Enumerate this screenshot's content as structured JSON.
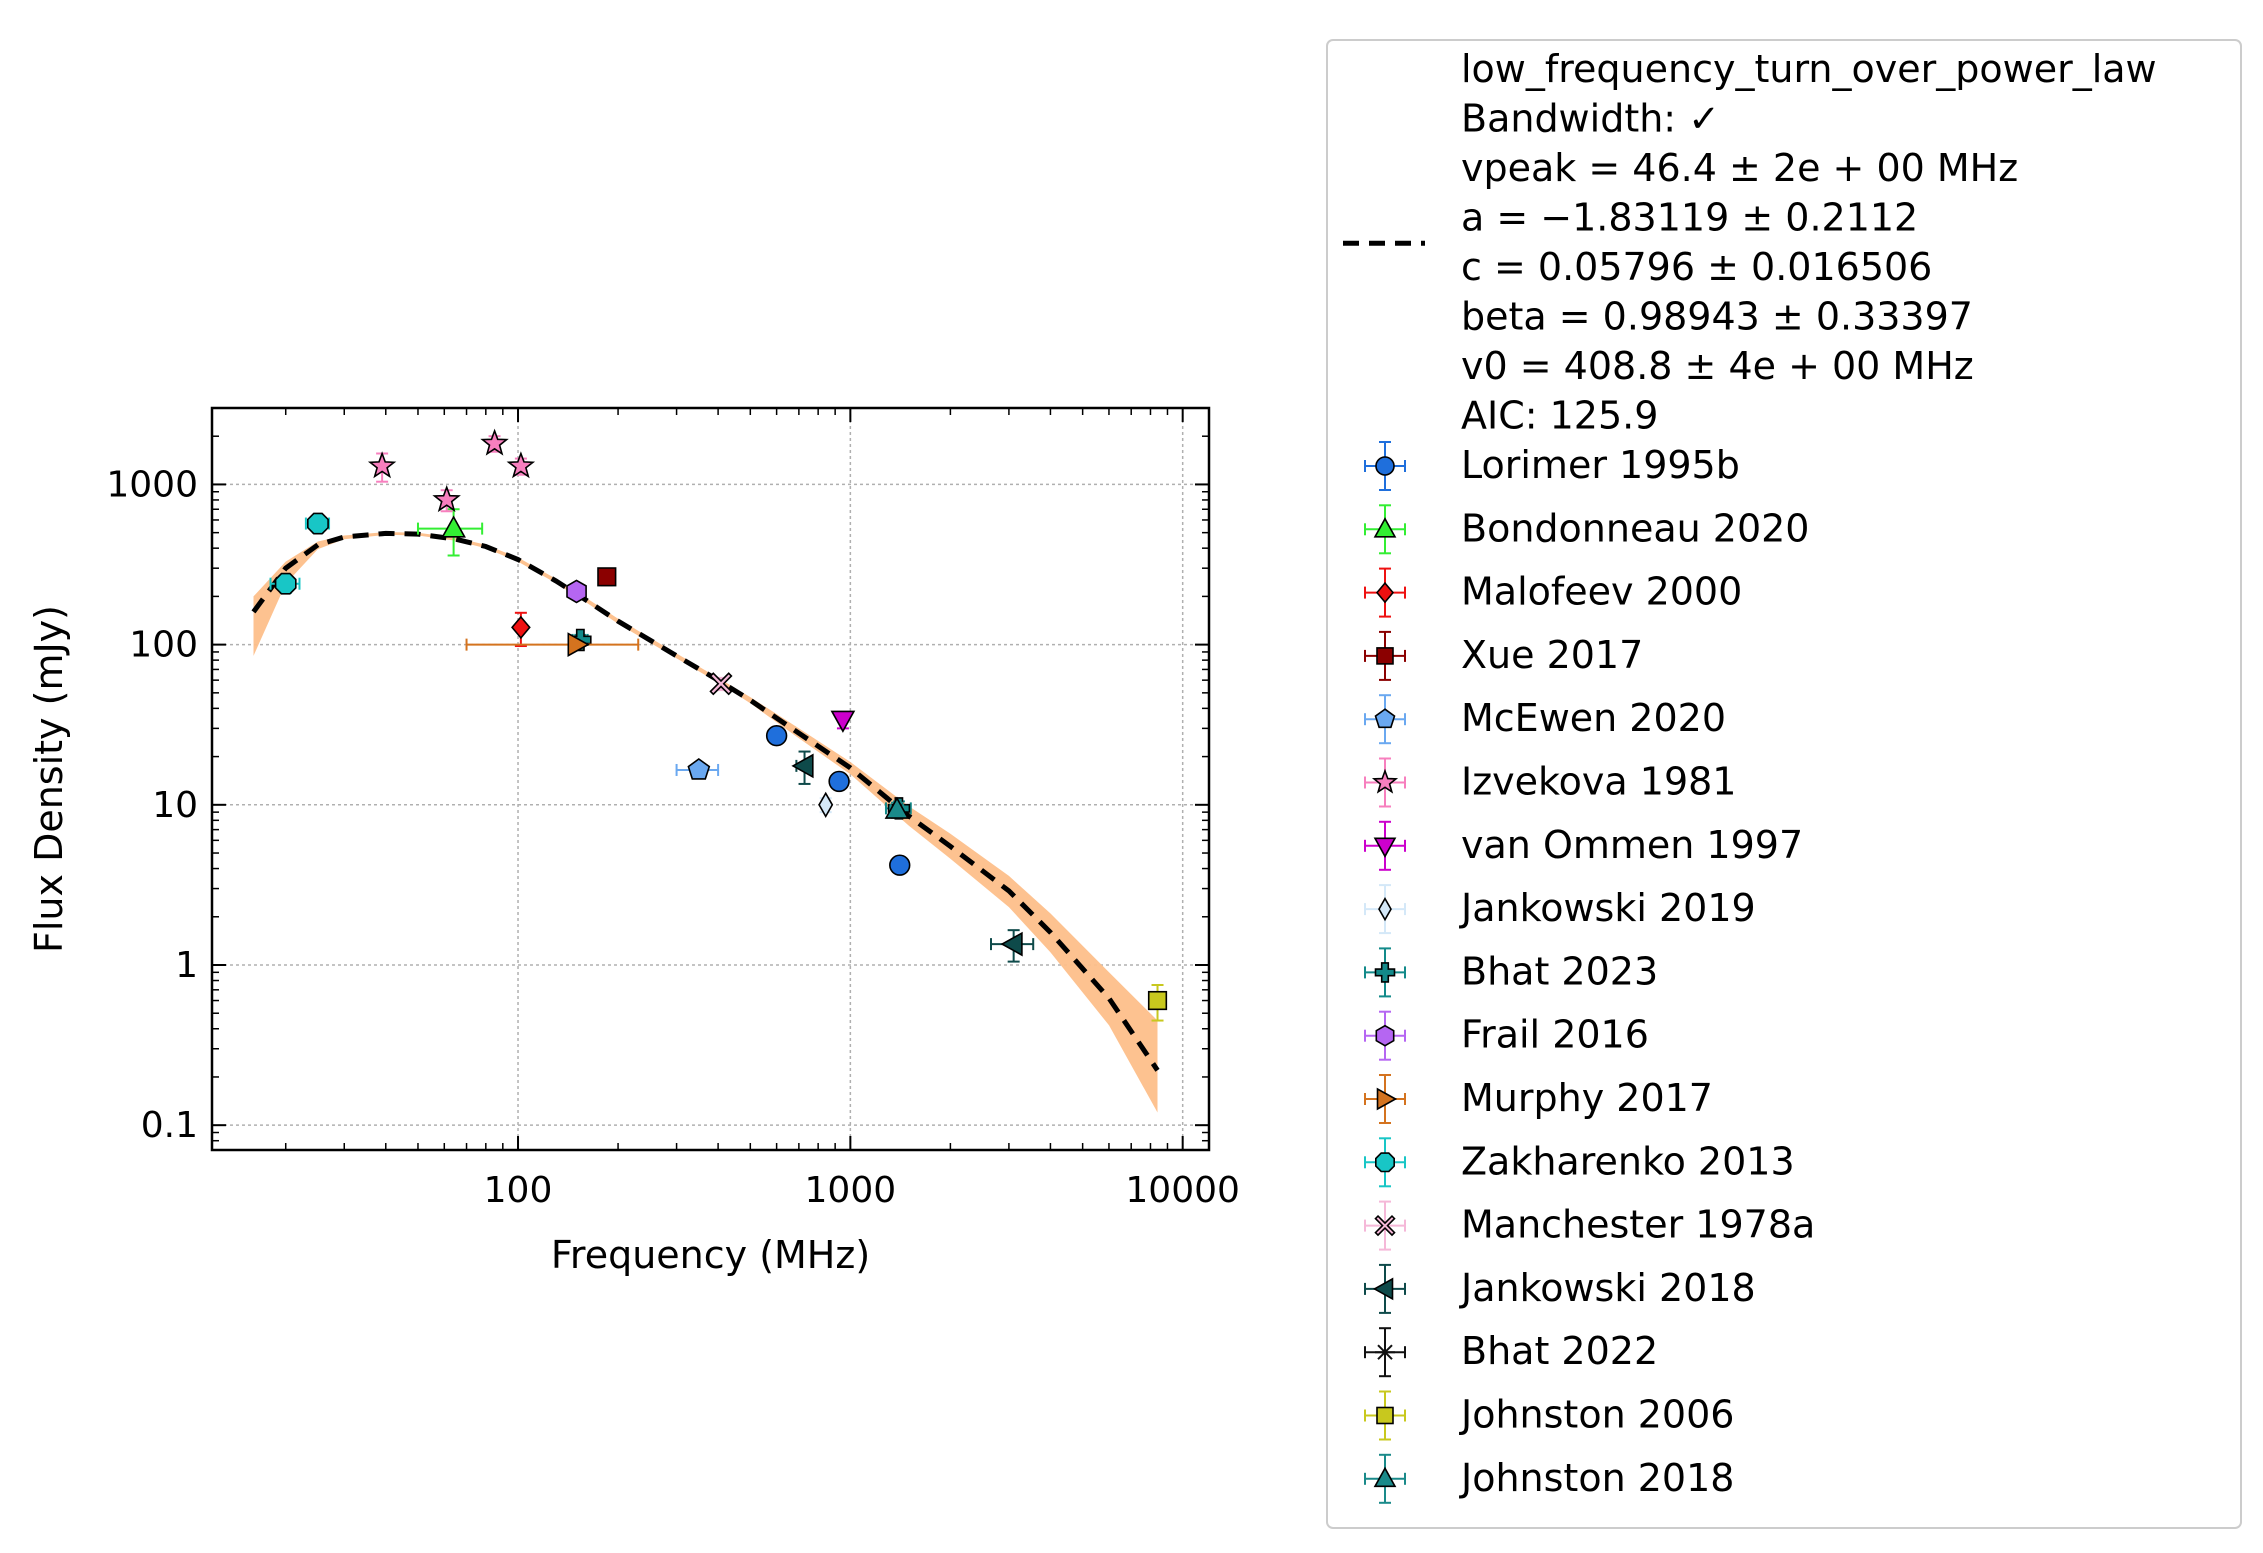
{
  "chart_data": {
    "type": "scatter",
    "title": "",
    "xlabel": "Frequency (MHz)",
    "ylabel": "Flux Density (mJy)",
    "xscale": "log",
    "yscale": "log",
    "xlim": [
      12,
      12000
    ],
    "ylim": [
      0.07,
      3000
    ],
    "grid": true,
    "legend_position": "outside-right",
    "x_ticks": [
      100,
      1000,
      10000
    ],
    "x_tick_labels": [
      "100",
      "1000",
      "10000"
    ],
    "y_ticks": [
      0.1,
      1,
      10,
      100,
      1000
    ],
    "y_tick_labels": [
      "0.1",
      "1",
      "10",
      "100",
      "1000"
    ],
    "fit": {
      "model": "low_frequency_turn_over_power_law",
      "legend_lines": [
        "low_frequency_turn_over_power_law",
        "Bandwidth: ✓",
        "vpeak = 46.4 ± 2e + 00 MHz",
        "a = −1.83119 ± 0.2112",
        "c = 0.05796 ± 0.016506",
        "beta = 0.98943 ± 0.33397",
        "v0 = 408.8 ± 4e + 00 MHz",
        "AIC: 125.9"
      ],
      "line_color": "#000000",
      "band_color": "#fdbf8a",
      "curve": [
        [
          16,
          160
        ],
        [
          20,
          300
        ],
        [
          25,
          420
        ],
        [
          30,
          470
        ],
        [
          40,
          495
        ],
        [
          50,
          490
        ],
        [
          65,
          455
        ],
        [
          80,
          410
        ],
        [
          100,
          340
        ],
        [
          130,
          250
        ],
        [
          160,
          190
        ],
        [
          200,
          140
        ],
        [
          300,
          85
        ],
        [
          400,
          60
        ],
        [
          500,
          45
        ],
        [
          700,
          28
        ],
        [
          1000,
          17
        ],
        [
          1500,
          8.5
        ],
        [
          2000,
          5.5
        ],
        [
          3000,
          2.9
        ],
        [
          4000,
          1.6
        ],
        [
          6000,
          0.62
        ],
        [
          8400,
          0.22
        ]
      ],
      "band_upper": [
        [
          16,
          200
        ],
        [
          20,
          330
        ],
        [
          25,
          440
        ],
        [
          30,
          480
        ],
        [
          40,
          505
        ],
        [
          50,
          500
        ],
        [
          65,
          465
        ],
        [
          80,
          420
        ],
        [
          100,
          350
        ],
        [
          130,
          258
        ],
        [
          160,
          196
        ],
        [
          200,
          145
        ],
        [
          300,
          88
        ],
        [
          400,
          62
        ],
        [
          500,
          47
        ],
        [
          700,
          30
        ],
        [
          1000,
          18.5
        ],
        [
          1500,
          9.8
        ],
        [
          2000,
          6.6
        ],
        [
          3000,
          3.6
        ],
        [
          4000,
          2.1
        ],
        [
          6000,
          0.9
        ],
        [
          8400,
          0.45
        ]
      ],
      "band_lower": [
        [
          16,
          85
        ],
        [
          20,
          240
        ],
        [
          25,
          395
        ],
        [
          30,
          455
        ],
        [
          40,
          485
        ],
        [
          50,
          480
        ],
        [
          65,
          445
        ],
        [
          80,
          400
        ],
        [
          100,
          330
        ],
        [
          130,
          242
        ],
        [
          160,
          184
        ],
        [
          200,
          135
        ],
        [
          300,
          82
        ],
        [
          400,
          58
        ],
        [
          500,
          43
        ],
        [
          700,
          26
        ],
        [
          1000,
          15.5
        ],
        [
          1500,
          7.4
        ],
        [
          2000,
          4.6
        ],
        [
          3000,
          2.3
        ],
        [
          4000,
          1.2
        ],
        [
          6000,
          0.42
        ],
        [
          8400,
          0.12
        ]
      ]
    },
    "series": [
      {
        "name": "Lorimer 1995b",
        "marker": "o",
        "color": "#1f6fdc",
        "points": [
          [
            600,
            27,
            0,
            0,
            1.5
          ],
          [
            925,
            14,
            0,
            0,
            1
          ],
          [
            1408,
            4.2,
            0,
            0,
            0.3
          ]
        ]
      },
      {
        "name": "Bondonneau 2020",
        "marker": "^",
        "color": "#33ee33",
        "points": [
          [
            64,
            530,
            14,
            0,
            170
          ]
        ]
      },
      {
        "name": "Malofeev 2000",
        "marker": "D",
        "color": "#ee1111",
        "points": [
          [
            102,
            128,
            0,
            0,
            30
          ]
        ]
      },
      {
        "name": "Xue 2017",
        "marker": "s",
        "color": "#8b0000",
        "points": [
          [
            185,
            265,
            10,
            0,
            30
          ]
        ]
      },
      {
        "name": "McEwen 2020",
        "marker": "p",
        "color": "#6aa8f0",
        "points": [
          [
            350,
            16.5,
            50,
            0,
            1.5
          ]
        ]
      },
      {
        "name": "Izvekova 1981",
        "marker": "*",
        "color": "#f77fbe",
        "points": [
          [
            39,
            1300,
            0,
            0,
            260
          ],
          [
            61,
            800,
            0,
            0,
            120
          ],
          [
            85,
            1800,
            0,
            0,
            200
          ],
          [
            102,
            1300,
            0,
            0,
            150
          ]
        ]
      },
      {
        "name": "van Ommen 1997",
        "marker": "v",
        "color": "#cc00cc",
        "points": [
          [
            950,
            34,
            0,
            0,
            4
          ]
        ]
      },
      {
        "name": "Jankowski 2019",
        "marker": "d",
        "color": "#d4e8f8",
        "points": [
          [
            843,
            10,
            0,
            0,
            1
          ]
        ]
      },
      {
        "name": "Bhat 2023",
        "marker": "P",
        "color": "#138a8a",
        "points": [
          [
            154,
            107,
            8,
            0,
            8
          ],
          [
            1400,
            9.5,
            120,
            0,
            1
          ]
        ]
      },
      {
        "name": "Frail 2016",
        "marker": "h",
        "color": "#b566f2",
        "points": [
          [
            150,
            215,
            0,
            0,
            20
          ]
        ]
      },
      {
        "name": "Murphy 2017",
        "marker": ">",
        "color": "#d4731f",
        "points": [
          [
            150,
            100,
            80,
            0,
            5
          ]
        ]
      },
      {
        "name": "Zakharenko 2013",
        "marker": "8",
        "color": "#18c6c6",
        "points": [
          [
            20,
            240,
            2,
            0,
            30
          ],
          [
            25,
            570,
            2,
            0,
            70
          ]
        ]
      },
      {
        "name": "Manchester 1978a",
        "marker": "X",
        "color": "#f5b8d8",
        "points": [
          [
            408,
            57,
            0,
            0,
            5
          ]
        ]
      },
      {
        "name": "Jankowski 2018",
        "marker": "<",
        "color": "#0e4a4a",
        "points": [
          [
            728,
            17.5,
            40,
            0,
            4
          ],
          [
            3100,
            1.35,
            450,
            0,
            0.3
          ]
        ]
      },
      {
        "name": "Bhat 2022",
        "marker": "x",
        "color": "#111111",
        "points": []
      },
      {
        "name": "Johnston 2006",
        "marker": "s",
        "color": "#c8c81e",
        "points": [
          [
            8400,
            0.6,
            0,
            0,
            0.15
          ]
        ]
      },
      {
        "name": "Johnston 2018",
        "marker": "^",
        "color": "#1a8a8a",
        "points": [
          [
            1382,
            9.3,
            60,
            0,
            1
          ]
        ]
      }
    ]
  }
}
